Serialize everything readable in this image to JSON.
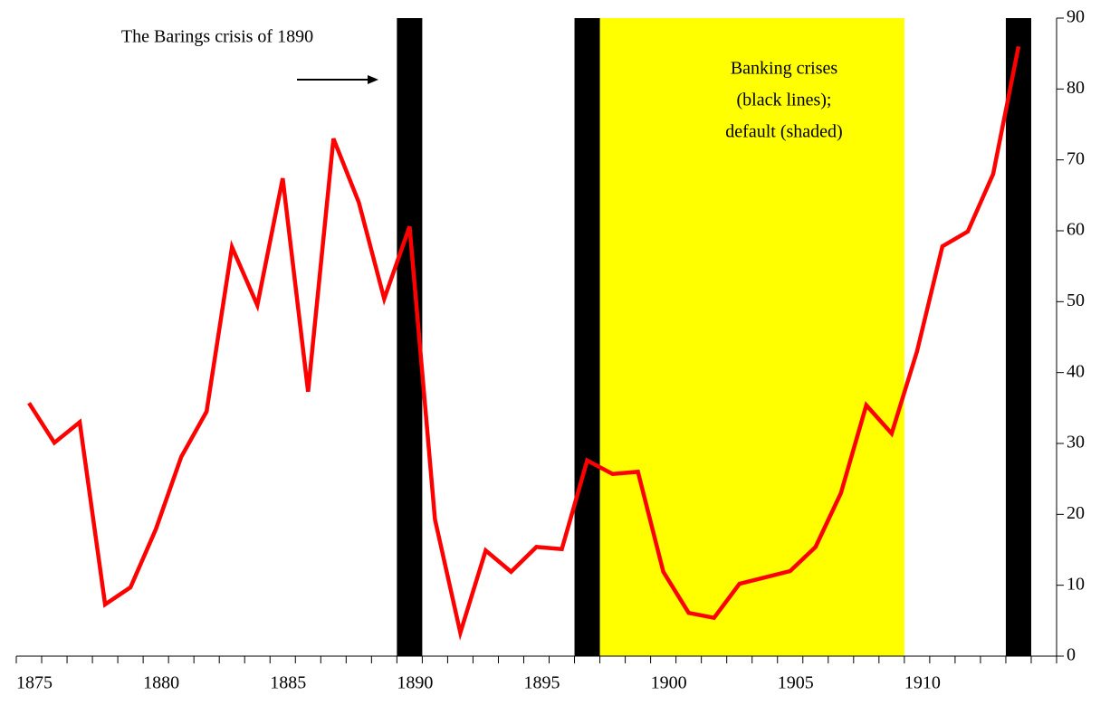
{
  "chart_data": {
    "type": "line",
    "annotations": [
      "The Barings crisis of 1890",
      "Banking crises",
      "(black lines);",
      "default (shaded)"
    ],
    "categories": [
      "1875",
      null,
      null,
      null,
      null,
      "1880",
      null,
      null,
      null,
      null,
      "1885",
      null,
      null,
      null,
      null,
      "1890",
      null,
      null,
      null,
      null,
      "1895",
      null,
      null,
      null,
      null,
      "1900",
      null,
      null,
      null,
      null,
      "1905",
      null,
      null,
      null,
      null,
      "1910",
      null,
      null,
      null,
      null,
      null
    ],
    "category_years": [
      1875,
      1876,
      1877,
      1878,
      1879,
      1880,
      1881,
      1882,
      1883,
      1884,
      1885,
      1886,
      1887,
      1888,
      1889,
      1890,
      1891,
      1892,
      1893,
      1894,
      1895,
      1896,
      1897,
      1898,
      1899,
      1900,
      1901,
      1902,
      1903,
      1904,
      1905,
      1906,
      1907,
      1908,
      1909,
      1910,
      1911,
      1912,
      1913,
      1914,
      1915
    ],
    "series": [
      {
        "color": "#ff0000",
        "values": [
          35.7,
          30.1,
          33,
          7.3,
          9.7,
          17.9,
          28.1,
          34.5,
          57.7,
          49.5,
          67.4,
          37.3,
          73,
          64,
          50.4,
          60.6,
          19.3,
          3.3,
          14.9,
          11.9,
          15.4,
          15.1,
          27.6,
          25.7,
          26,
          11.9,
          6.1,
          5.4,
          10.2,
          11.1,
          12,
          15.4,
          23,
          35.4,
          31.4,
          43,
          57.8,
          59.9,
          68,
          86,
          null
        ]
      }
    ],
    "banking_crises": [
      1890,
      1897,
      1914
    ],
    "banking_crisis_color": "#000000",
    "default_period": [
      1898,
      1909
    ],
    "default_color": "#ffff00",
    "ylim": [
      0,
      90
    ],
    "yticks": [
      0,
      10,
      20,
      30,
      40,
      50,
      60,
      70,
      80,
      90
    ],
    "y_axis_side": "right"
  }
}
